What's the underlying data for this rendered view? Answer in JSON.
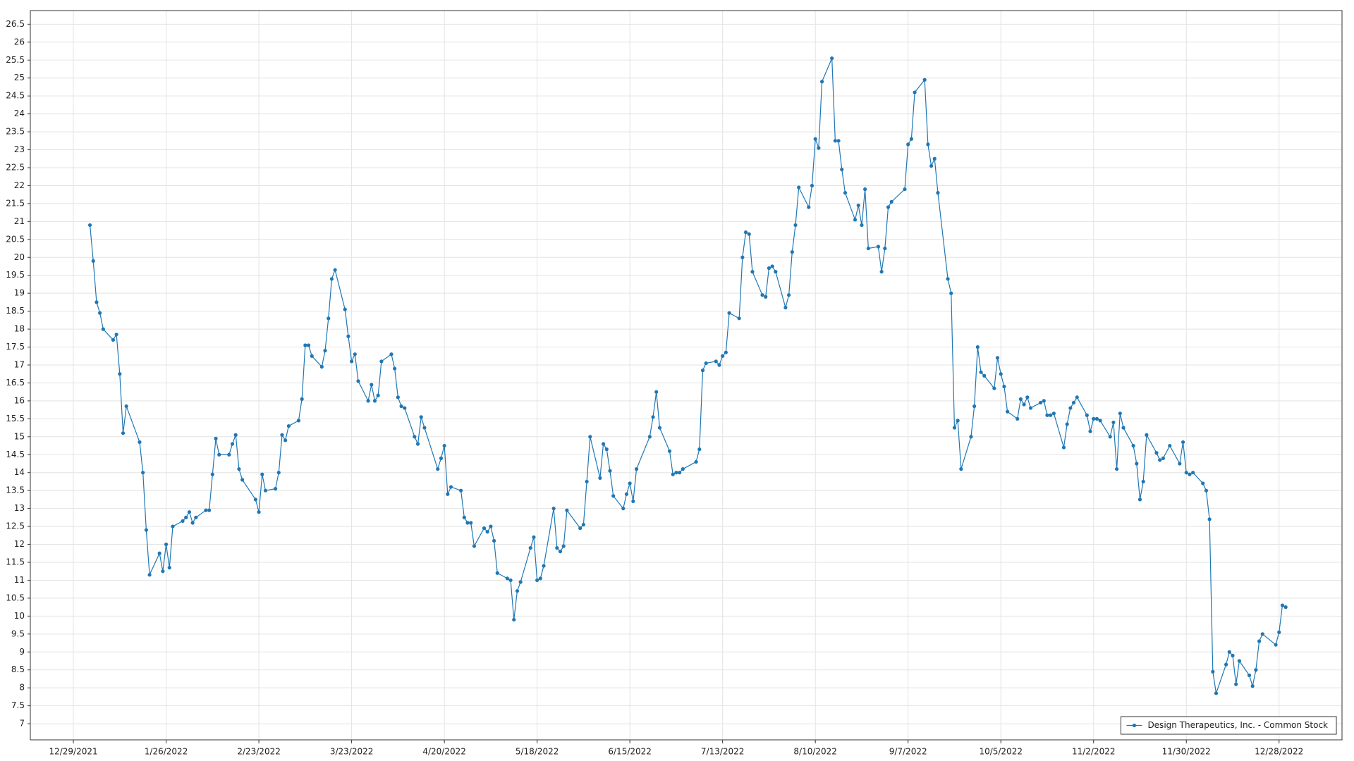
{
  "chart_data": {
    "type": "line",
    "xlim": [
      "12/16/2021",
      "1/16/2023"
    ],
    "xticks": [
      "12/29/2021",
      "1/26/2022",
      "2/23/2022",
      "3/23/2022",
      "4/20/2022",
      "5/18/2022",
      "6/15/2022",
      "7/13/2022",
      "8/10/2022",
      "9/7/2022",
      "10/5/2022",
      "11/2/2022",
      "11/30/2022",
      "12/28/2022"
    ],
    "ylim": [
      6.55,
      26.88
    ],
    "yticks": [
      7,
      7.5,
      8,
      8.5,
      9,
      9.5,
      10,
      10.5,
      11,
      11.5,
      12,
      12.5,
      13,
      13.5,
      14,
      14.5,
      15,
      15.5,
      16,
      16.5,
      17,
      17.5,
      18,
      18.5,
      19,
      19.5,
      20,
      20.5,
      21,
      21.5,
      22,
      22.5,
      23,
      23.5,
      24,
      24.5,
      25,
      25.5,
      26,
      26.5
    ],
    "grid": true,
    "legend": "lower right",
    "x": [
      "1/3/2022",
      "1/4/2022",
      "1/5/2022",
      "1/6/2022",
      "1/7/2022",
      "1/10/2022",
      "1/11/2022",
      "1/12/2022",
      "1/13/2022",
      "1/14/2022",
      "1/18/2022",
      "1/19/2022",
      "1/20/2022",
      "1/21/2022",
      "1/24/2022",
      "1/25/2022",
      "1/26/2022",
      "1/27/2022",
      "1/28/2022",
      "1/31/2022",
      "2/1/2022",
      "2/2/2022",
      "2/3/2022",
      "2/4/2022",
      "2/7/2022",
      "2/8/2022",
      "2/9/2022",
      "2/10/2022",
      "2/11/2022",
      "2/14/2022",
      "2/15/2022",
      "2/16/2022",
      "2/17/2022",
      "2/18/2022",
      "2/22/2022",
      "2/23/2022",
      "2/24/2022",
      "2/25/2022",
      "2/28/2022",
      "3/1/2022",
      "3/2/2022",
      "3/3/2022",
      "3/4/2022",
      "3/7/2022",
      "3/8/2022",
      "3/9/2022",
      "3/10/2022",
      "3/11/2022",
      "3/14/2022",
      "3/15/2022",
      "3/16/2022",
      "3/17/2022",
      "3/18/2022",
      "3/21/2022",
      "3/22/2022",
      "3/23/2022",
      "3/24/2022",
      "3/25/2022",
      "3/28/2022",
      "3/29/2022",
      "3/30/2022",
      "3/31/2022",
      "4/1/2022",
      "4/4/2022",
      "4/5/2022",
      "4/6/2022",
      "4/7/2022",
      "4/8/2022",
      "4/11/2022",
      "4/12/2022",
      "4/13/2022",
      "4/14/2022",
      "4/18/2022",
      "4/19/2022",
      "4/20/2022",
      "4/21/2022",
      "4/22/2022",
      "4/25/2022",
      "4/26/2022",
      "4/27/2022",
      "4/28/2022",
      "4/29/2022",
      "5/2/2022",
      "5/3/2022",
      "5/4/2022",
      "5/5/2022",
      "5/6/2022",
      "5/9/2022",
      "5/10/2022",
      "5/11/2022",
      "5/12/2022",
      "5/13/2022",
      "5/16/2022",
      "5/17/2022",
      "5/18/2022",
      "5/19/2022",
      "5/20/2022",
      "5/23/2022",
      "5/24/2022",
      "5/25/2022",
      "5/26/2022",
      "5/27/2022",
      "5/31/2022",
      "6/1/2022",
      "6/2/2022",
      "6/3/2022",
      "6/6/2022",
      "6/7/2022",
      "6/8/2022",
      "6/9/2022",
      "6/10/2022",
      "6/13/2022",
      "6/14/2022",
      "6/15/2022",
      "6/16/2022",
      "6/17/2022",
      "6/21/2022",
      "6/22/2022",
      "6/23/2022",
      "6/24/2022",
      "6/27/2022",
      "6/28/2022",
      "6/29/2022",
      "6/30/2022",
      "7/1/2022",
      "7/5/2022",
      "7/6/2022",
      "7/7/2022",
      "7/8/2022",
      "7/11/2022",
      "7/12/2022",
      "7/13/2022",
      "7/14/2022",
      "7/15/2022",
      "7/18/2022",
      "7/19/2022",
      "7/20/2022",
      "7/21/2022",
      "7/22/2022",
      "7/25/2022",
      "7/26/2022",
      "7/27/2022",
      "7/28/2022",
      "7/29/2022",
      "8/1/2022",
      "8/2/2022",
      "8/3/2022",
      "8/4/2022",
      "8/5/2022",
      "8/8/2022",
      "8/9/2022",
      "8/10/2022",
      "8/11/2022",
      "8/12/2022",
      "8/15/2022",
      "8/16/2022",
      "8/17/2022",
      "8/18/2022",
      "8/19/2022",
      "8/22/2022",
      "8/23/2022",
      "8/24/2022",
      "8/25/2022",
      "8/26/2022",
      "8/29/2022",
      "8/30/2022",
      "8/31/2022",
      "9/1/2022",
      "9/2/2022",
      "9/6/2022",
      "9/7/2022",
      "9/8/2022",
      "9/9/2022",
      "9/12/2022",
      "9/13/2022",
      "9/14/2022",
      "9/15/2022",
      "9/16/2022",
      "9/19/2022",
      "9/20/2022",
      "9/21/2022",
      "9/22/2022",
      "9/23/2022",
      "9/26/2022",
      "9/27/2022",
      "9/28/2022",
      "9/29/2022",
      "9/30/2022",
      "10/3/2022",
      "10/4/2022",
      "10/5/2022",
      "10/6/2022",
      "10/7/2022",
      "10/10/2022",
      "10/11/2022",
      "10/12/2022",
      "10/13/2022",
      "10/14/2022",
      "10/17/2022",
      "10/18/2022",
      "10/19/2022",
      "10/20/2022",
      "10/21/2022",
      "10/24/2022",
      "10/25/2022",
      "10/26/2022",
      "10/27/2022",
      "10/28/2022",
      "10/31/2022",
      "11/1/2022",
      "11/2/2022",
      "11/3/2022",
      "11/4/2022",
      "11/7/2022",
      "11/8/2022",
      "11/9/2022",
      "11/10/2022",
      "11/11/2022",
      "11/14/2022",
      "11/15/2022",
      "11/16/2022",
      "11/17/2022",
      "11/18/2022",
      "11/21/2022",
      "11/22/2022",
      "11/23/2022",
      "11/25/2022",
      "11/28/2022",
      "11/29/2022",
      "11/30/2022",
      "12/1/2022",
      "12/2/2022",
      "12/5/2022",
      "12/6/2022",
      "12/7/2022",
      "12/8/2022",
      "12/9/2022",
      "12/12/2022",
      "12/13/2022",
      "12/14/2022",
      "12/15/2022",
      "12/16/2022",
      "12/19/2022",
      "12/20/2022",
      "12/21/2022",
      "12/22/2022",
      "12/23/2022",
      "12/27/2022",
      "12/28/2022",
      "12/29/2022",
      "12/30/2022"
    ],
    "series": [
      {
        "name": "Design Therapeutics, Inc. - Common Stock",
        "color": "#1f77b4",
        "values": [
          20.9,
          19.9,
          18.75,
          18.45,
          18.0,
          17.7,
          17.85,
          16.75,
          15.1,
          15.85,
          14.85,
          14.0,
          12.4,
          11.15,
          11.75,
          11.25,
          12.0,
          11.35,
          12.5,
          12.65,
          12.75,
          12.9,
          12.6,
          12.75,
          12.95,
          12.95,
          13.95,
          14.95,
          14.5,
          14.5,
          14.8,
          15.05,
          14.1,
          13.8,
          13.25,
          12.9,
          13.95,
          13.5,
          13.55,
          14.0,
          15.05,
          14.9,
          15.3,
          15.45,
          16.05,
          17.55,
          17.55,
          17.25,
          16.95,
          17.4,
          18.3,
          19.4,
          19.65,
          18.55,
          17.8,
          17.1,
          17.3,
          16.55,
          16.0,
          16.45,
          16.0,
          16.15,
          17.1,
          17.3,
          16.9,
          16.1,
          15.85,
          15.8,
          15.0,
          14.8,
          15.55,
          15.25,
          14.1,
          14.4,
          14.75,
          13.4,
          13.6,
          13.5,
          12.75,
          12.6,
          12.6,
          11.95,
          12.45,
          12.35,
          12.5,
          12.1,
          11.2,
          11.05,
          11.0,
          9.9,
          10.7,
          10.95,
          11.9,
          12.2,
          11.0,
          11.05,
          11.4,
          13.0,
          11.9,
          11.8,
          11.95,
          12.95,
          12.45,
          12.55,
          13.75,
          15.0,
          13.85,
          14.8,
          14.65,
          14.05,
          13.35,
          13.0,
          13.4,
          13.7,
          13.2,
          14.1,
          15.0,
          15.55,
          16.25,
          15.25,
          14.6,
          13.95,
          14.0,
          14.0,
          14.1,
          14.3,
          14.65,
          16.85,
          17.05,
          17.1,
          17.0,
          17.25,
          17.35,
          18.45,
          18.3,
          20.0,
          20.7,
          20.65,
          19.6,
          18.95,
          18.9,
          19.7,
          19.75,
          19.6,
          18.6,
          18.95,
          20.15,
          20.9,
          21.95,
          21.4,
          22.0,
          23.3,
          23.05,
          24.9,
          25.55,
          23.25,
          23.25,
          22.45,
          21.8,
          21.05,
          21.45,
          20.9,
          21.9,
          20.25,
          20.3,
          19.6,
          20.25,
          21.4,
          21.55,
          21.9,
          23.15,
          23.3,
          24.6,
          24.95,
          23.15,
          22.55,
          22.75,
          21.8,
          19.4,
          19.0,
          15.25,
          15.45,
          14.1,
          15.0,
          15.85,
          17.5,
          16.8,
          16.7,
          16.35,
          17.2,
          16.75,
          16.4,
          15.7,
          15.5,
          16.05,
          15.9,
          16.1,
          15.8,
          15.95,
          16.0,
          15.6,
          15.6,
          15.65,
          14.7,
          15.35,
          15.8,
          15.95,
          16.1,
          15.6,
          15.15,
          15.5,
          15.5,
          15.45,
          15.0,
          15.4,
          14.1,
          15.65,
          15.25,
          14.75,
          14.25,
          13.25,
          13.75,
          15.05,
          14.55,
          14.35,
          14.4,
          14.75,
          14.25,
          14.85,
          14.0,
          13.95,
          14.0,
          13.7,
          13.5,
          12.7,
          8.45,
          7.85,
          8.65,
          9.0,
          8.9,
          8.1,
          8.75,
          8.35,
          8.05,
          8.5,
          9.3,
          9.5,
          9.2,
          9.55,
          10.3,
          10.25
        ]
      }
    ]
  }
}
